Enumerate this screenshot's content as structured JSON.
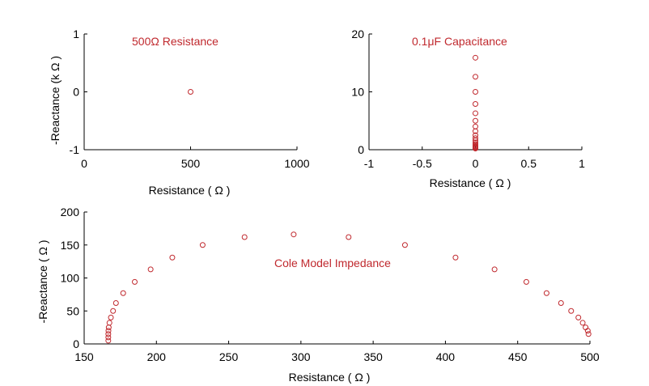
{
  "chart_data": [
    {
      "type": "scatter",
      "annotation": "500Ω Resistance",
      "xlabel": "Resistance ( Ω )",
      "ylabel": "-Reactance (k Ω )",
      "xlim": [
        0,
        1000
      ],
      "ylim": [
        -1,
        1
      ],
      "xticks": [
        0,
        500,
        1000
      ],
      "yticks": [
        -1,
        0,
        1
      ],
      "marker_color": "#c0292e",
      "series": [
        {
          "x": [
            500
          ],
          "y": [
            0
          ]
        }
      ]
    },
    {
      "type": "scatter",
      "annotation": "0.1μF Capacitance",
      "xlabel": "Resistance ( Ω )",
      "ylabel": "",
      "xlim": [
        -1,
        1
      ],
      "ylim": [
        0,
        20
      ],
      "xticks": [
        -1,
        -0.5,
        0,
        0.5,
        1
      ],
      "yticks": [
        0,
        10,
        20
      ],
      "marker_color": "#c0292e",
      "series": [
        {
          "x": [
            0,
            0,
            0,
            0,
            0,
            0,
            0,
            0,
            0,
            0,
            0,
            0,
            0,
            0,
            0,
            0,
            0,
            0,
            0,
            0
          ],
          "y": [
            15.9,
            12.6,
            10.0,
            7.9,
            6.3,
            5.0,
            4.0,
            3.2,
            2.5,
            2.0,
            1.6,
            1.26,
            1.0,
            0.79,
            0.63,
            0.5,
            0.4,
            0.32,
            0.25,
            0.2
          ]
        }
      ]
    },
    {
      "type": "scatter",
      "annotation": "Cole Model Impedance",
      "xlabel": "Resistance ( Ω )",
      "ylabel": "-Reactance ( Ω )",
      "xlim": [
        150,
        500
      ],
      "ylim": [
        0,
        200
      ],
      "xticks": [
        150,
        200,
        250,
        300,
        350,
        400,
        450,
        500
      ],
      "yticks": [
        0,
        50,
        100,
        150,
        200
      ],
      "marker_color": "#c0292e",
      "series": [
        {
          "x": [
            499,
            498.5,
            497,
            495,
            492,
            487,
            480,
            470,
            456,
            434,
            407,
            372,
            333,
            295,
            261,
            232,
            211,
            196,
            185,
            177,
            172,
            170,
            168.5,
            167.5,
            167,
            166.8,
            166.7,
            166.7,
            166.7
          ],
          "y": [
            15,
            20,
            25,
            32,
            40,
            50,
            62,
            77,
            94,
            113,
            131,
            150,
            162,
            166,
            162,
            150,
            131,
            113,
            94,
            77,
            62,
            50,
            40,
            32,
            25,
            20,
            15,
            10,
            5
          ]
        }
      ]
    }
  ]
}
